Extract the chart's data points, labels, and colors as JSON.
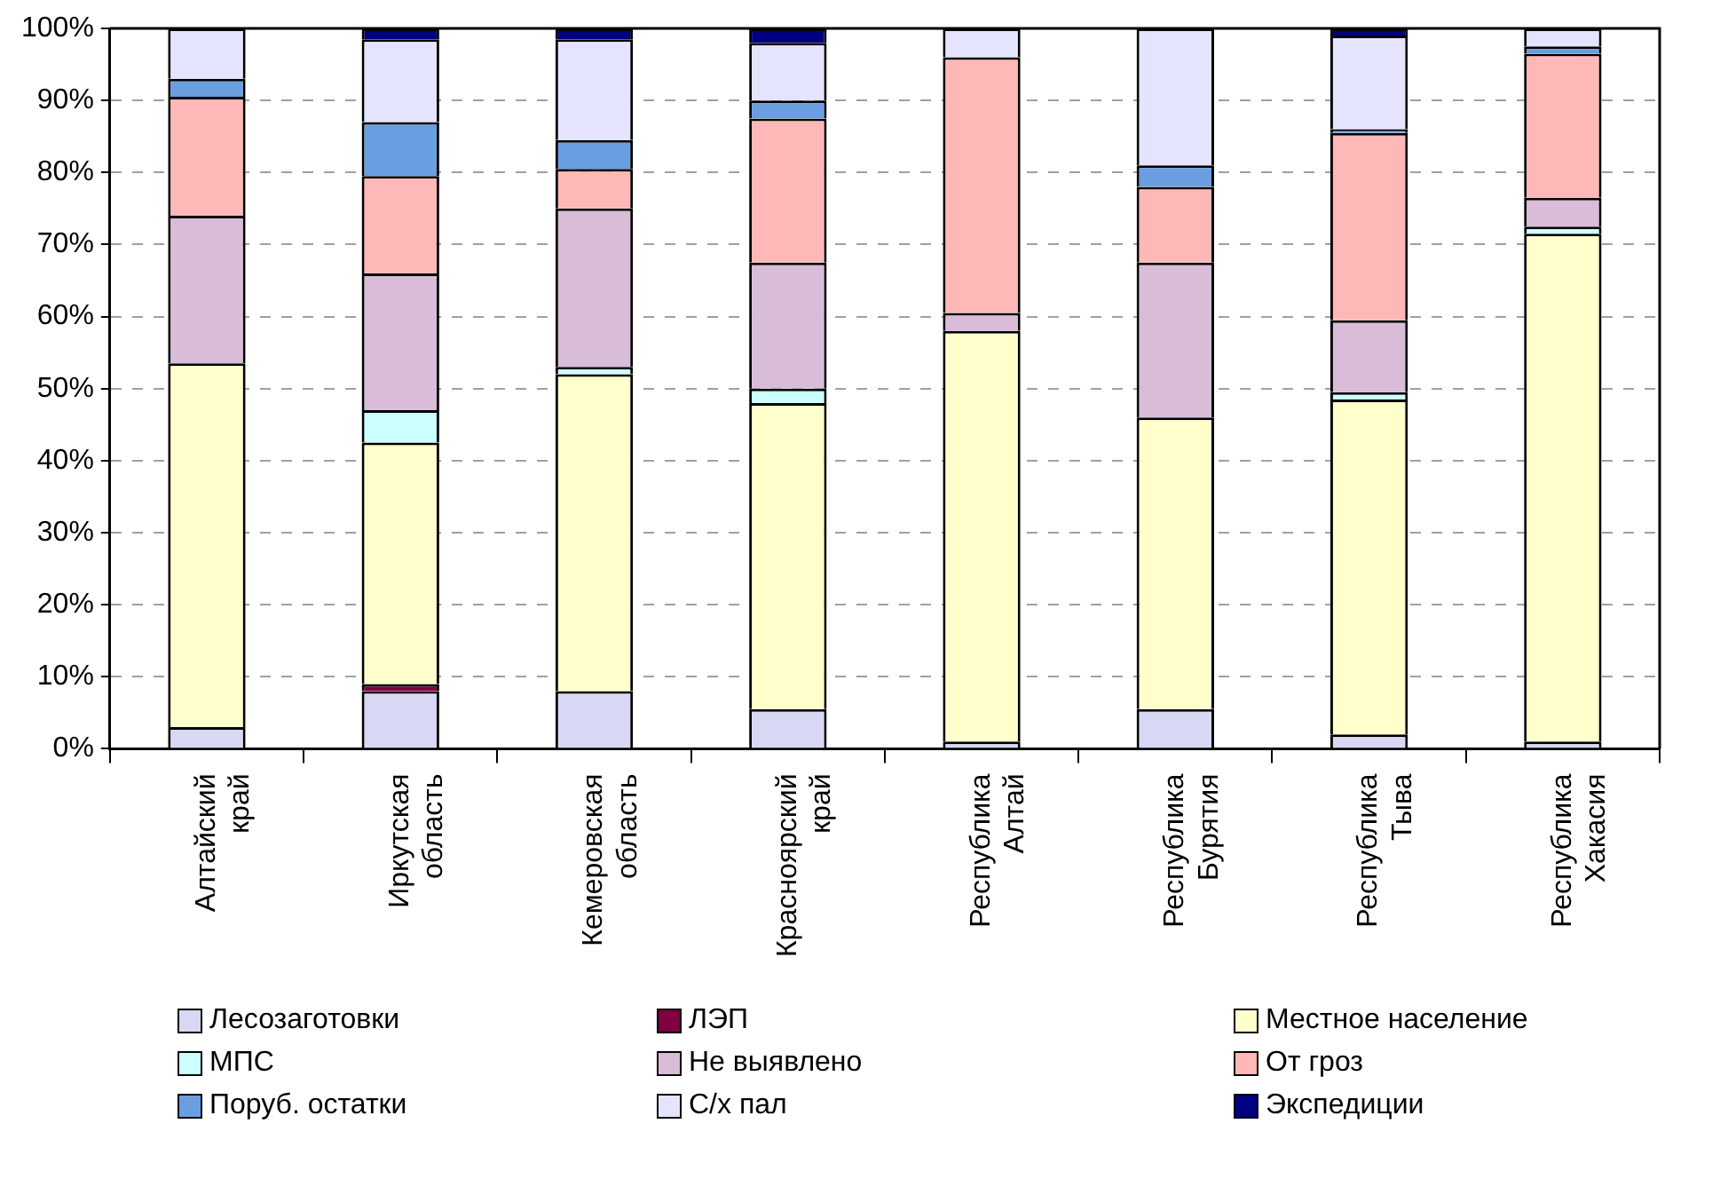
{
  "chart_data": {
    "type": "bar",
    "stacked": true,
    "categories": [
      "Алтайский край",
      "Иркутская область",
      "Кемеровская область",
      "Красноярский край",
      "Республика Алтай",
      "Республика Бурятия",
      "Республика Тыва",
      "Республика Хакасия"
    ],
    "series": [
      {
        "name": "Лесозаготовки",
        "color": "#d8d8f4",
        "values": [
          3,
          8,
          8,
          5.5,
          1,
          5.5,
          2,
          1
        ]
      },
      {
        "name": "ЛЭП",
        "color": "#800040",
        "values": [
          0,
          1,
          0,
          0,
          0,
          0,
          0,
          0
        ]
      },
      {
        "name": "Местное население",
        "color": "#ffffcc",
        "values": [
          50.5,
          33.5,
          44,
          42.5,
          57,
          40.5,
          46.5,
          70.5
        ]
      },
      {
        "name": "МПС",
        "color": "#ccffff",
        "values": [
          0,
          4.5,
          1,
          2,
          0,
          0,
          1,
          1
        ]
      },
      {
        "name": "Не выявлено",
        "color": "#d8bcd8",
        "values": [
          20.5,
          19,
          22,
          17.5,
          2.5,
          21.5,
          10,
          4
        ]
      },
      {
        "name": "От гроз",
        "color": "#ffb8b8",
        "values": [
          16.5,
          13.5,
          5.5,
          20,
          35.5,
          10.5,
          26,
          20
        ]
      },
      {
        "name": "Поруб. остатки",
        "color": "#6a9ee0",
        "values": [
          2.5,
          7.5,
          4,
          2.5,
          0,
          3,
          0.5,
          1
        ]
      },
      {
        "name": "С/х пал",
        "color": "#e4e4ff",
        "values": [
          7,
          11.5,
          14,
          8,
          4,
          19,
          13,
          2.5
        ]
      },
      {
        "name": "Экспедиции",
        "color": "#000080",
        "values": [
          0,
          1.5,
          1.5,
          2,
          0,
          0,
          1,
          0
        ]
      }
    ],
    "ylim": [
      0,
      100
    ],
    "yticks": [
      {
        "value": 0,
        "label": "0%"
      },
      {
        "value": 10,
        "label": "10%"
      },
      {
        "value": 20,
        "label": "20%"
      },
      {
        "value": 30,
        "label": "30%"
      },
      {
        "value": 40,
        "label": "40%"
      },
      {
        "value": 50,
        "label": "50%"
      },
      {
        "value": 60,
        "label": "60%"
      },
      {
        "value": 70,
        "label": "70%"
      },
      {
        "value": 80,
        "label": "80%"
      },
      {
        "value": 90,
        "label": "90%"
      },
      {
        "value": 100,
        "label": "100%"
      }
    ],
    "grid": "y",
    "legend": "bottom"
  }
}
